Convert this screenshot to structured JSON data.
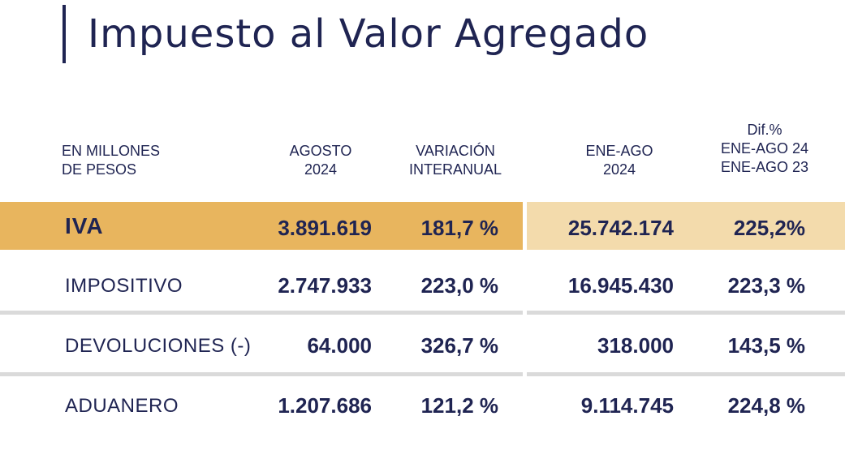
{
  "title": "Impuesto al Valor Agregado",
  "headers": {
    "label": [
      "EN MILLONES",
      "DE PESOS"
    ],
    "agosto": [
      "AGOSTO",
      "2024"
    ],
    "variacion": [
      "VARIACIÓN",
      "INTERANUAL"
    ],
    "eneago": [
      "ENE-AGO",
      "2024"
    ],
    "dif": [
      "Dif.%",
      "ENE-AGO 24",
      "ENE-AGO 23"
    ]
  },
  "rows": [
    {
      "label": "IVA",
      "agosto": "3.891.619",
      "variacion": "181,7 %",
      "eneago": "25.742.174",
      "dif": "225,2%"
    },
    {
      "label": "IMPOSITIVO",
      "agosto": "2.747.933",
      "variacion": "223,0 %",
      "eneago": "16.945.430",
      "dif": "223,3 %"
    },
    {
      "label": "DEVOLUCIONES (-)",
      "agosto": "64.000",
      "variacion": "326,7 %",
      "eneago": "318.000",
      "dif": "143,5 %"
    },
    {
      "label": "ADUANERO",
      "agosto": "1.207.686",
      "variacion": "121,2 %",
      "eneago": "9.114.745",
      "dif": "224,8 %"
    }
  ],
  "colors": {
    "text": "#1f2452",
    "highlight_left": "#e8b55e",
    "highlight_right": "#f3dbac",
    "separator": "#dadada"
  }
}
